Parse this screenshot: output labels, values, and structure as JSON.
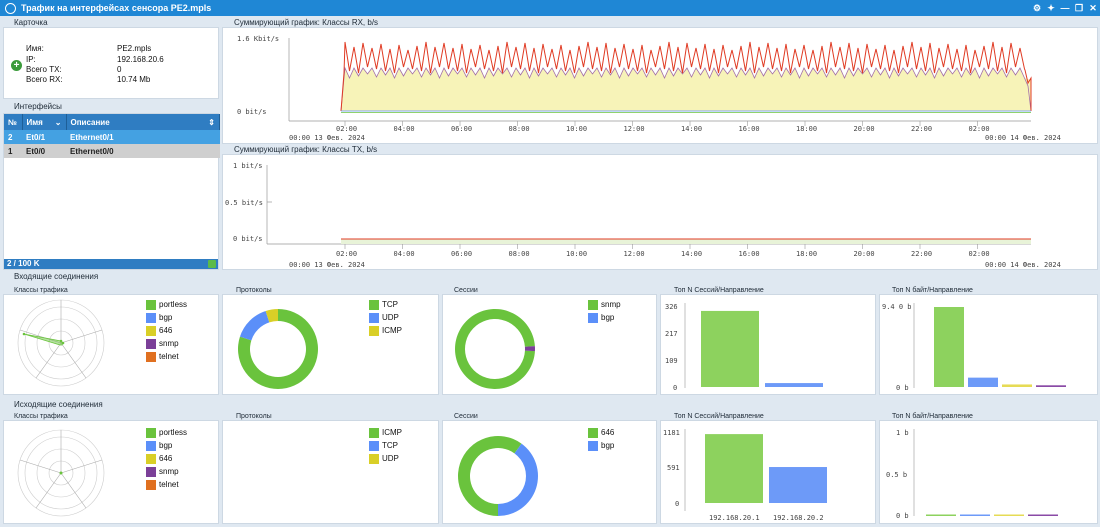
{
  "window": {
    "title": "Трафик на интерфейсах сенсора PE2.mpls"
  },
  "card": {
    "title": "Карточка",
    "rows": [
      {
        "label": "Имя:",
        "value": "PE2.mpls"
      },
      {
        "label": "IP:",
        "value": "192.168.20.6"
      },
      {
        "label": "Всего TX:",
        "value": "0"
      },
      {
        "label": "Всего RX:",
        "value": "10.74 Mb"
      }
    ]
  },
  "interfaces": {
    "title": "Интерфейсы",
    "headers": {
      "num": "№",
      "name": "Имя",
      "desc": "Описание"
    },
    "rows": [
      {
        "num": "2",
        "name": "Et0/1",
        "desc": "Ethernet0/1"
      },
      {
        "num": "1",
        "name": "Et0/0",
        "desc": "Ethernet0/0"
      }
    ],
    "footer": "2 / 100 K"
  },
  "rx_chart": {
    "title": "Суммирующий график: Классы RX, b/s",
    "y_ticks": [
      "1.6 Kbit/s",
      "0 bit/s"
    ],
    "x_ticks": [
      "02:00",
      "04:00",
      "06:00",
      "08:00",
      "10:00",
      "12:00",
      "14:00",
      "16:00",
      "18:00",
      "20:00",
      "22:00",
      "02:00"
    ],
    "date_left": "00:00 13 Фев. 2024",
    "date_right": "00:00 14 Фев. 2024"
  },
  "tx_chart": {
    "title": "Суммирующий график: Классы TX, b/s",
    "y_ticks": [
      "1 bit/s",
      "0.5 bit/s",
      "0 bit/s"
    ],
    "x_ticks": [
      "02:00",
      "04:00",
      "06:00",
      "08:00",
      "10:00",
      "12:00",
      "14:00",
      "16:00",
      "18:00",
      "20:00",
      "22:00",
      "02:00"
    ],
    "date_left": "00:00 13 Фев. 2024",
    "date_right": "00:00 14 Фев. 2024"
  },
  "incoming": {
    "title": "Входящие соединения",
    "classes_title": "Классы трафика",
    "classes_legend": [
      {
        "label": "portless",
        "color": "#6ac33d"
      },
      {
        "label": "bgp",
        "color": "#5b8ff9"
      },
      {
        "label": "646",
        "color": "#d9cf27"
      },
      {
        "label": "snmp",
        "color": "#7b3f98"
      },
      {
        "label": "telnet",
        "color": "#e07020"
      }
    ],
    "protocols_title": "Протоколы",
    "protocols_legend": [
      {
        "label": "TCP",
        "color": "#6ac33d"
      },
      {
        "label": "UDP",
        "color": "#5b8ff9"
      },
      {
        "label": "ICMP",
        "color": "#d9cf27"
      }
    ],
    "sessions_title": "Сессии",
    "sessions_legend": [
      {
        "label": "snmp",
        "color": "#6ac33d"
      },
      {
        "label": "bgp",
        "color": "#5b8ff9"
      }
    ],
    "topn_sessions_title": "Топ N Сессий/Направление",
    "topn_sessions_ticks": [
      "326",
      "217",
      "109",
      "0"
    ],
    "topn_bytes_title": "Топ N байт/Направление",
    "topn_bytes_ticks": [
      "9.4 0 b",
      "0 b"
    ]
  },
  "outgoing": {
    "title": "Исходящие соединения",
    "classes_title": "Классы трафика",
    "classes_legend": [
      {
        "label": "portless",
        "color": "#6ac33d"
      },
      {
        "label": "bgp",
        "color": "#5b8ff9"
      },
      {
        "label": "646",
        "color": "#d9cf27"
      },
      {
        "label": "snmp",
        "color": "#7b3f98"
      },
      {
        "label": "telnet",
        "color": "#e07020"
      }
    ],
    "protocols_title": "Протоколы",
    "protocols_legend": [
      {
        "label": "ICMP",
        "color": "#6ac33d"
      },
      {
        "label": "TCP",
        "color": "#5b8ff9"
      },
      {
        "label": "UDP",
        "color": "#d9cf27"
      }
    ],
    "sessions_title": "Сессии",
    "sessions_legend": [
      {
        "label": "646",
        "color": "#6ac33d"
      },
      {
        "label": "bgp",
        "color": "#5b8ff9"
      }
    ],
    "topn_sessions_title": "Топ N Сессий/Направление",
    "topn_sessions_ticks": [
      "1181",
      "591",
      "0"
    ],
    "topn_sessions_xlabels": [
      "192.168.20.1",
      "192.168.20.2"
    ],
    "topn_bytes_title": "Топ N байт/Направление",
    "topn_bytes_ticks": [
      "1 b",
      "0.5 b",
      "0 b"
    ]
  },
  "chart_data": [
    {
      "type": "pie",
      "title": "Протоколы",
      "series": [
        {
          "name": "TCP",
          "value": 80
        },
        {
          "name": "UDP",
          "value": 15
        },
        {
          "name": "ICMP",
          "value": 5
        }
      ]
    },
    {
      "type": "pie",
      "title": "Сессии",
      "series": [
        {
          "name": "snmp",
          "value": 98
        },
        {
          "name": "bgp",
          "value": 2
        }
      ]
    },
    {
      "type": "bar",
      "title": "Топ N Сессий/Направление",
      "values": [
        310,
        16
      ],
      "ylim": [
        0,
        326
      ]
    },
    {
      "type": "bar",
      "title": "Топ N байт/Направление",
      "values": [
        9.4,
        1.1,
        0.3,
        0.2
      ],
      "ylim": [
        0,
        9.4
      ]
    },
    {
      "type": "pie",
      "title": "Сессии",
      "series": [
        {
          "name": "646",
          "value": 60
        },
        {
          "name": "bgp",
          "value": 40
        }
      ]
    },
    {
      "type": "bar",
      "title": "Топ N Сессий/Направление",
      "categories": [
        "192.168.20.1",
        "192.168.20.2"
      ],
      "values": [
        1130,
        590
      ],
      "ylim": [
        0,
        1181
      ]
    },
    {
      "type": "bar",
      "title": "Топ N байт/Направление",
      "values": [
        0,
        0,
        0,
        0
      ],
      "ylim": [
        0,
        1
      ]
    }
  ]
}
